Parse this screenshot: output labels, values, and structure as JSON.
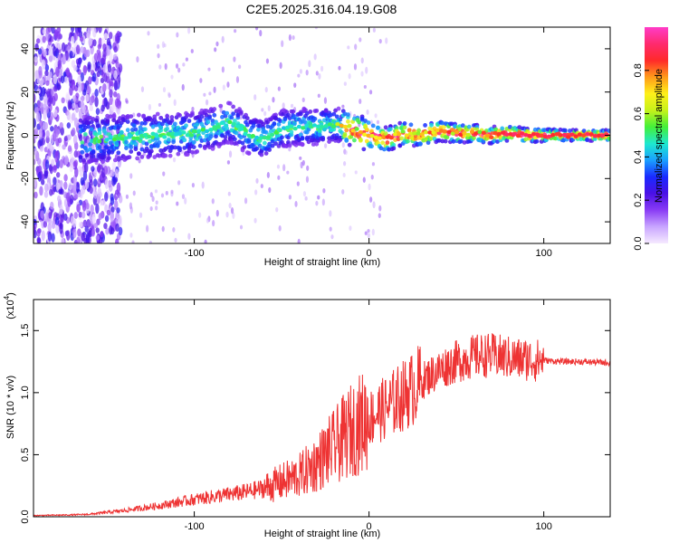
{
  "chart_data": [
    {
      "type": "heatmap",
      "title": "C2E5.2025.316.04.19.G08",
      "xlabel": "Height of straight line (km)",
      "ylabel": "Frequency (Hz)",
      "xlim": [
        -192,
        138
      ],
      "ylim": [
        -50,
        50
      ],
      "x_ticks": [
        -100,
        0,
        100
      ],
      "x_tick_labels": [
        "-100",
        "0",
        "100"
      ],
      "y_ticks": [
        -40,
        -20,
        0,
        20,
        40
      ],
      "y_tick_labels": [
        "-40",
        "-20",
        "0",
        "20",
        "40"
      ],
      "colorbar": {
        "label": "Normalized spectral amplitude",
        "range": [
          0.0,
          1.0
        ],
        "ticks": [
          0.0,
          0.2,
          0.4,
          0.6,
          0.8
        ],
        "tick_labels": [
          "0.0",
          "0.2",
          "0.4",
          "0.6",
          "0.8"
        ],
        "colormap": [
          "#f6eaff",
          "#c9a6ff",
          "#8a3cf5",
          "#4a10e6",
          "#1a2aff",
          "#1aa0ff",
          "#1ee8d0",
          "#44f03a",
          "#c6f21a",
          "#fff01a",
          "#ff9a1a",
          "#ff2a2a",
          "#ff2a6e",
          "#ff3cc8"
        ]
      },
      "ridge": {
        "x": [
          -160,
          -140,
          -120,
          -100,
          -90,
          -80,
          -70,
          -60,
          -50,
          -40,
          -30,
          -20,
          -10,
          0,
          10,
          20,
          30,
          40,
          50,
          60,
          70,
          80,
          90,
          100,
          110,
          120,
          138
        ],
        "y": [
          -2,
          -1,
          0,
          1,
          3,
          6,
          1,
          -2,
          3,
          4,
          4,
          5,
          3,
          0,
          -2,
          1,
          0,
          2,
          1,
          1,
          0,
          1,
          0,
          0,
          0,
          0,
          0
        ]
      }
    },
    {
      "type": "line",
      "title": "",
      "xlabel": "Height of straight line (km)",
      "ylabel": "SNR (10 * v/v)",
      "scale_label": "(x10",
      "scale_exponent": "4",
      "xlim": [
        -192,
        138
      ],
      "ylim": [
        0,
        17500
      ],
      "x_ticks": [
        -100,
        0,
        100
      ],
      "x_tick_labels": [
        "-100",
        "0",
        "100"
      ],
      "y_ticks": [
        0,
        5000,
        10000,
        15000
      ],
      "y_tick_labels": [
        "0.0",
        "0.5",
        "1.0",
        "1.5"
      ],
      "color": "#ee3333",
      "series": [
        {
          "name": "SNR",
          "x": [
            -192,
            -170,
            -160,
            -150,
            -140,
            -130,
            -120,
            -110,
            -100,
            -90,
            -80,
            -70,
            -60,
            -50,
            -40,
            -35,
            -30,
            -25,
            -20,
            -15,
            -10,
            -5,
            0,
            5,
            10,
            15,
            20,
            25,
            30,
            35,
            40,
            45,
            50,
            55,
            60,
            65,
            70,
            75,
            80,
            85,
            90,
            95,
            100,
            105,
            110,
            120,
            130,
            138
          ],
          "y": [
            100,
            150,
            200,
            350,
            500,
            700,
            900,
            1150,
            1400,
            1600,
            1800,
            2000,
            2300,
            2800,
            3300,
            3800,
            4300,
            5000,
            5600,
            6300,
            7000,
            7500,
            7900,
            8400,
            8800,
            9300,
            9800,
            10300,
            10900,
            11400,
            11800,
            12200,
            12500,
            12700,
            12900,
            13000,
            13000,
            12900,
            12800,
            12700,
            12700,
            12600,
            12600,
            12550,
            12500,
            12500,
            12450,
            12400
          ]
        }
      ]
    }
  ]
}
